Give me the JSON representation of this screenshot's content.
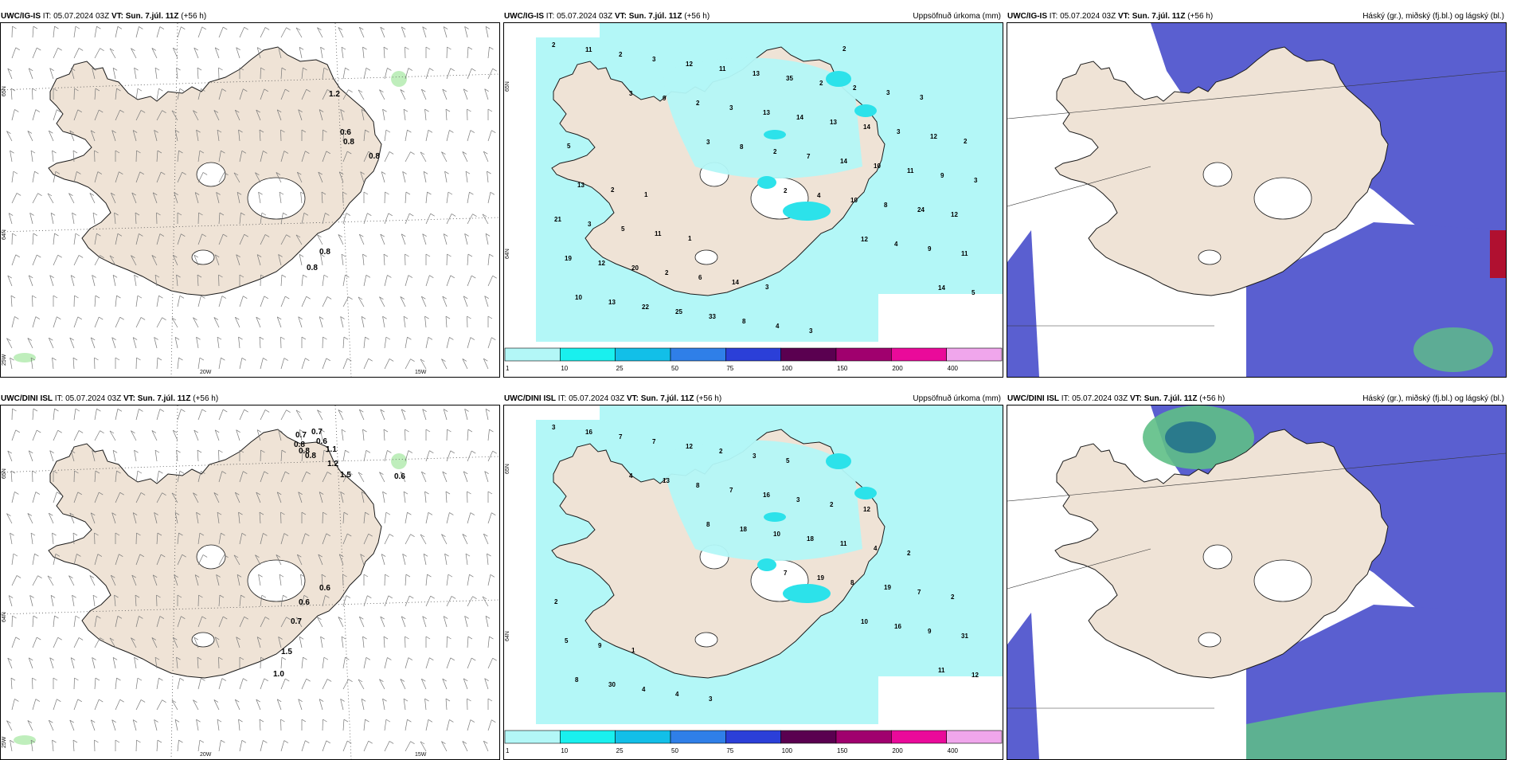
{
  "colors": {
    "land": "#efe3d6",
    "coast": "#1a1a1a",
    "precip_light": "#b3f7f7",
    "precip_mid": "#2ce2ea",
    "cloud_high": "#7b9a55",
    "cloud_mid": "#3f48c8",
    "cloud_mid_fill": "#5a5fd0",
    "cloud_low": "#5ebf86"
  },
  "panels": [
    {
      "model": "UWC/IG-IS",
      "it": "IT: 05.07.2024 03Z",
      "vt_label": "VT:",
      "vt": "Sun. 7.júl. 11Z",
      "lead": "(+56 h)",
      "title_right": "",
      "kind": "wind",
      "lat_labels": [
        "65N",
        "64N"
      ],
      "lon_labels": [
        "25W",
        "20W",
        "15W"
      ],
      "values": [
        "1.2",
        "0.6",
        "0.8",
        "0.8",
        "0.8",
        "0.8"
      ]
    },
    {
      "model": "UWC/IG-IS",
      "it": "IT: 05.07.2024 03Z",
      "vt_label": "VT:",
      "vt": "Sun. 7.júl. 11Z",
      "lead": "(+56 h)",
      "title_right": "Uppsöfnuð úrkoma (mm)",
      "kind": "precip",
      "lat_labels": [
        "65N",
        "64N"
      ],
      "values": [
        "2",
        "3",
        "3",
        "2",
        "12",
        "14",
        "11",
        "9",
        "8",
        "4",
        "4",
        "5",
        "2",
        "2",
        "2",
        "10",
        "9",
        "10",
        "3",
        "3",
        "7",
        "8",
        "11",
        "13",
        "12",
        "13",
        "14",
        "24",
        "19",
        "22",
        "11",
        "14",
        "10",
        "12",
        "12",
        "25",
        "13",
        "13",
        "11",
        "21",
        "20",
        "33",
        "35",
        "14",
        "9",
        "3",
        "2",
        "8",
        "2",
        "3",
        "3",
        "5",
        "6",
        "4",
        "2",
        "12",
        "13",
        "11",
        "14",
        "3",
        "3",
        "2",
        "2",
        "1",
        "3",
        "2",
        "3",
        "5",
        "1"
      ],
      "colorbar": [
        "1",
        "10",
        "25",
        "50",
        "75",
        "100",
        "150",
        "200",
        "400"
      ]
    },
    {
      "model": "UWC/IG-IS",
      "it": "IT: 05.07.2024 03Z",
      "vt_label": "VT:",
      "vt": "Sun. 7.júl. 11Z",
      "lead": "(+56 h)",
      "title_right": "Háský (gr.), miðský (fj.bl.) og lágský (bl.)",
      "kind": "cloud"
    },
    {
      "model": "UWC/DINI ISL",
      "it": "IT: 05.07.2024 03Z",
      "vt_label": "VT:",
      "vt": "Sun. 7.júl. 11Z",
      "lead": "(+56 h)",
      "title_right": "",
      "kind": "wind",
      "lat_labels": [
        "65N",
        "64N"
      ],
      "lon_labels": [
        "25W",
        "20W",
        "15W"
      ],
      "values": [
        "0.7",
        "0.7",
        "0.8",
        "0.6",
        "0.8",
        "1.1",
        "0.8",
        "1.2",
        "1.5",
        "0.6",
        "0.6",
        "0.6",
        "0.7",
        "1.5",
        "1.0"
      ]
    },
    {
      "model": "UWC/DINI ISL",
      "it": "IT: 05.07.2024 03Z",
      "vt_label": "VT:",
      "vt": "Sun. 7.júl. 11Z",
      "lead": "(+56 h)",
      "title_right": "Uppsöfnuð úrkoma (mm)",
      "kind": "precip",
      "lat_labels": [
        "65N",
        "64N"
      ],
      "values": [
        "3",
        "4",
        "8",
        "7",
        "10",
        "11",
        "16",
        "13",
        "18",
        "19",
        "16",
        "12",
        "7",
        "8",
        "10",
        "8",
        "9",
        "8",
        "7",
        "7",
        "18",
        "19",
        "31",
        "30",
        "12",
        "16",
        "11",
        "7",
        "5",
        "4",
        "2",
        "3",
        "4",
        "2",
        "9",
        "4",
        "3",
        "2",
        "2",
        "2",
        "1",
        "3",
        "5",
        "12"
      ],
      "colorbar": [
        "1",
        "10",
        "25",
        "50",
        "75",
        "100",
        "150",
        "200",
        "400"
      ]
    },
    {
      "model": "UWC/DINI ISL",
      "it": "IT: 05.07.2024 03Z",
      "vt_label": "VT:",
      "vt": "Sun. 7.júl. 11Z",
      "lead": "(+56 h)",
      "title_right": "Háský (gr.), miðský (fj.bl.) og lágský (bl.)",
      "kind": "cloud"
    }
  ],
  "colorbar_colors": [
    "#b3f7f7",
    "#19f0ee",
    "#12bfe8",
    "#2f7fe8",
    "#2b3fd8",
    "#5a0050",
    "#a0006e",
    "#ea0a9a",
    "#f0a6ec"
  ]
}
